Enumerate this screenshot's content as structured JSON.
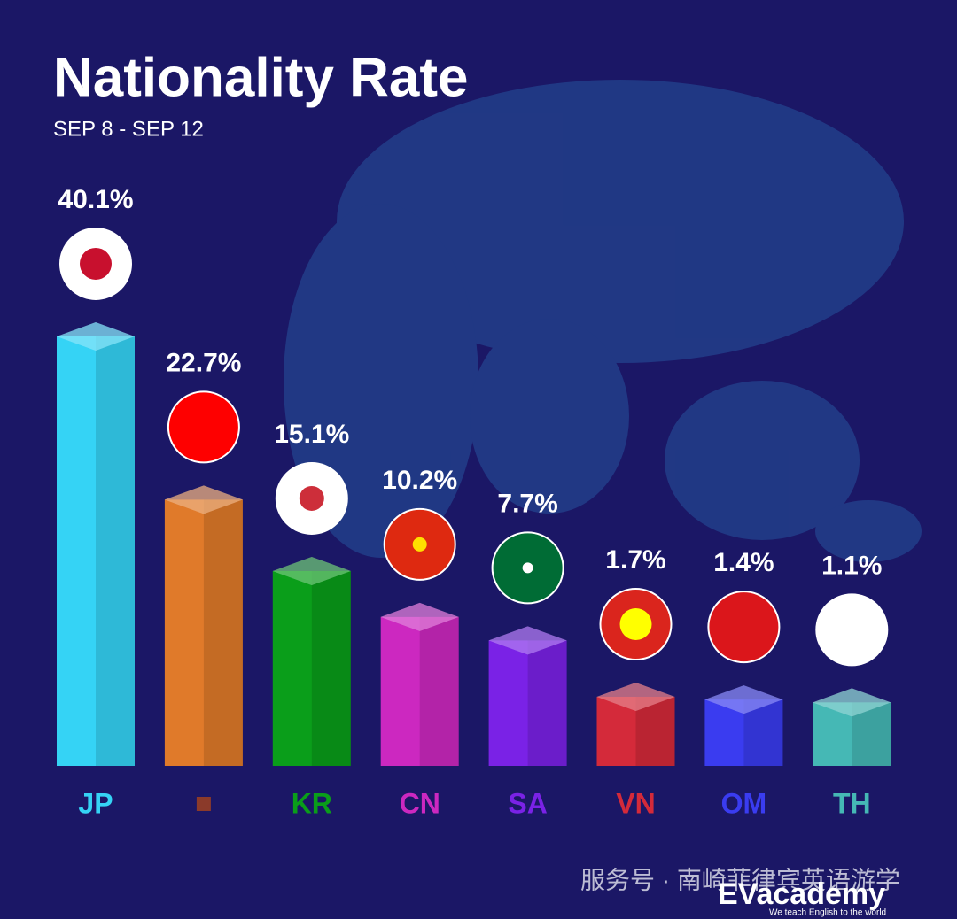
{
  "chart_data": {
    "type": "bar3d",
    "title": "Nationality Rate",
    "subtitle": "SEP 8 - SEP 12",
    "categories": [
      "JP",
      null,
      "KR",
      "CN",
      "SA",
      "VN",
      "OM",
      "TH"
    ],
    "values": [
      40.1,
      22.7,
      15.1,
      10.2,
      7.7,
      1.7,
      1.4,
      1.1
    ],
    "value_labels": [
      "40.1%",
      "22.7%",
      "15.1%",
      "10.2%",
      "7.7%",
      "1.7%",
      "1.4%",
      "1.1%"
    ],
    "colors": [
      "#35d3f5",
      "#e07a2a",
      "#0a9e1a",
      "#cc28c0",
      "#7a22e6",
      "#d42a3a",
      "#3a3cf0",
      "#45b8b5"
    ]
  },
  "watermark": "服务号 · 南崎菲律宾英语游学",
  "logo": {
    "name": "EVacademy",
    "tagline": "We teach English to the world"
  }
}
